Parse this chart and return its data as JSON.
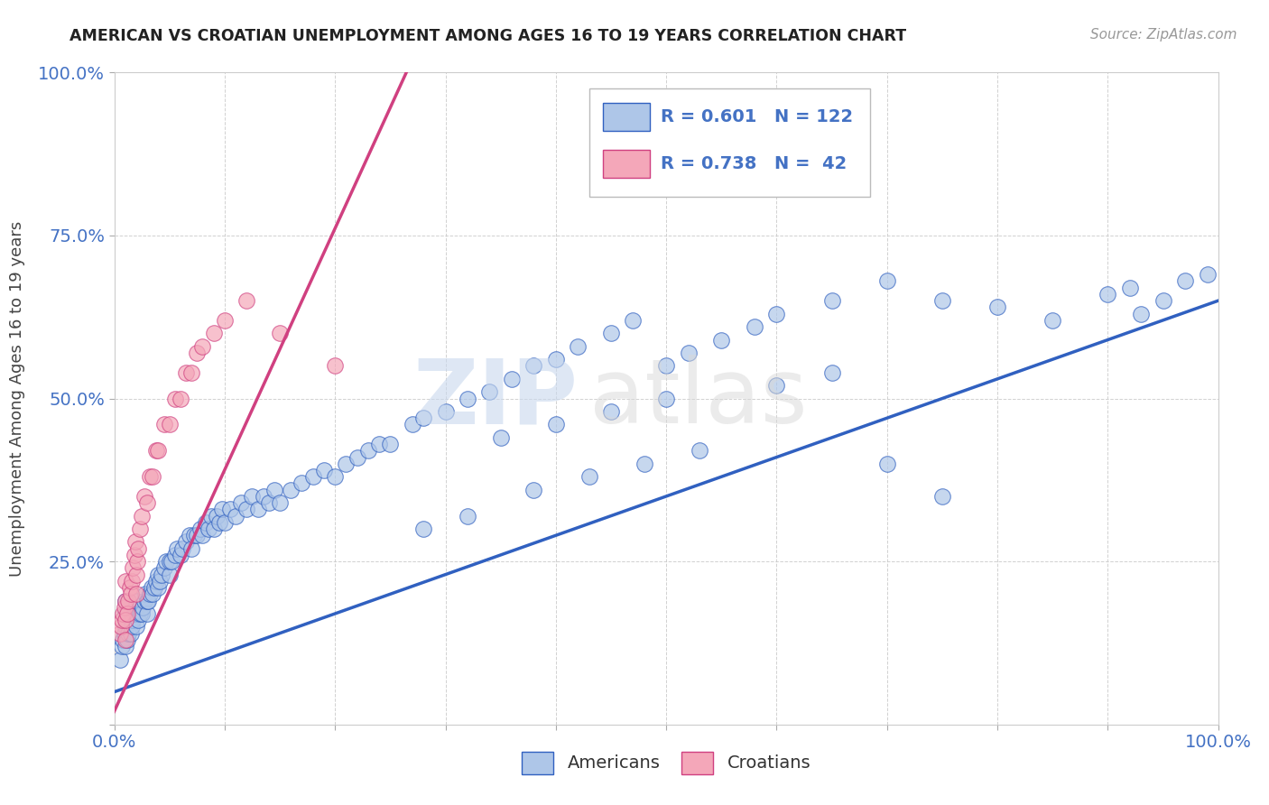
{
  "title": "AMERICAN VS CROATIAN UNEMPLOYMENT AMONG AGES 16 TO 19 YEARS CORRELATION CHART",
  "source": "Source: ZipAtlas.com",
  "ylabel": "Unemployment Among Ages 16 to 19 years",
  "xlim": [
    0,
    1.0
  ],
  "ylim": [
    0,
    1.0
  ],
  "xticks": [
    0.0,
    0.1,
    0.2,
    0.3,
    0.4,
    0.5,
    0.6,
    0.7,
    0.8,
    0.9,
    1.0
  ],
  "yticks": [
    0.0,
    0.25,
    0.5,
    0.75,
    1.0
  ],
  "xticklabels": [
    "0.0%",
    "",
    "",
    "",
    "",
    "",
    "",
    "",
    "",
    "",
    "100.0%"
  ],
  "yticklabels": [
    "",
    "25.0%",
    "50.0%",
    "75.0%",
    "100.0%"
  ],
  "legend_r1": "R = 0.601",
  "legend_n1": "N = 122",
  "legend_r2": "R = 0.738",
  "legend_n2": "N =  42",
  "legend_label1": "Americans",
  "legend_label2": "Croatians",
  "color_american": "#aec6e8",
  "color_croatian": "#f4a7b9",
  "color_line_american": "#3060c0",
  "color_line_croatian": "#d04080",
  "watermark_zip": "ZIP",
  "watermark_atlas": "atlas",
  "am_line_x0": 0.0,
  "am_line_y0": 0.05,
  "am_line_x1": 1.0,
  "am_line_y1": 0.65,
  "cr_line_x0": 0.0,
  "cr_line_y0": 0.02,
  "cr_line_x1": 0.27,
  "cr_line_y1": 1.02,
  "american_x": [
    0.005,
    0.007,
    0.008,
    0.009,
    0.01,
    0.01,
    0.01,
    0.01,
    0.012,
    0.013,
    0.015,
    0.015,
    0.016,
    0.017,
    0.018,
    0.019,
    0.02,
    0.02,
    0.02,
    0.022,
    0.023,
    0.025,
    0.026,
    0.027,
    0.028,
    0.03,
    0.03,
    0.031,
    0.032,
    0.034,
    0.035,
    0.036,
    0.038,
    0.04,
    0.04,
    0.041,
    0.043,
    0.045,
    0.047,
    0.05,
    0.05,
    0.052,
    0.055,
    0.057,
    0.06,
    0.062,
    0.065,
    0.068,
    0.07,
    0.072,
    0.075,
    0.078,
    0.08,
    0.083,
    0.085,
    0.088,
    0.09,
    0.093,
    0.095,
    0.098,
    0.1,
    0.105,
    0.11,
    0.115,
    0.12,
    0.125,
    0.13,
    0.135,
    0.14,
    0.145,
    0.15,
    0.16,
    0.17,
    0.18,
    0.19,
    0.2,
    0.21,
    0.22,
    0.23,
    0.24,
    0.25,
    0.27,
    0.28,
    0.3,
    0.32,
    0.34,
    0.36,
    0.38,
    0.4,
    0.42,
    0.45,
    0.47,
    0.5,
    0.52,
    0.55,
    0.58,
    0.6,
    0.65,
    0.7,
    0.75,
    0.8,
    0.85,
    0.9,
    0.92,
    0.93,
    0.95,
    0.97,
    0.99,
    0.35,
    0.4,
    0.45,
    0.5,
    0.38,
    0.43,
    0.48,
    0.53,
    0.28,
    0.32,
    0.6,
    0.65,
    0.7,
    0.75
  ],
  "american_y": [
    0.1,
    0.12,
    0.13,
    0.14,
    0.12,
    0.15,
    0.17,
    0.19,
    0.13,
    0.14,
    0.14,
    0.16,
    0.15,
    0.16,
    0.17,
    0.18,
    0.15,
    0.17,
    0.19,
    0.16,
    0.17,
    0.17,
    0.18,
    0.19,
    0.2,
    0.17,
    0.19,
    0.19,
    0.2,
    0.21,
    0.2,
    0.21,
    0.22,
    0.21,
    0.23,
    0.22,
    0.23,
    0.24,
    0.25,
    0.23,
    0.25,
    0.25,
    0.26,
    0.27,
    0.26,
    0.27,
    0.28,
    0.29,
    0.27,
    0.29,
    0.29,
    0.3,
    0.29,
    0.31,
    0.3,
    0.32,
    0.3,
    0.32,
    0.31,
    0.33,
    0.31,
    0.33,
    0.32,
    0.34,
    0.33,
    0.35,
    0.33,
    0.35,
    0.34,
    0.36,
    0.34,
    0.36,
    0.37,
    0.38,
    0.39,
    0.38,
    0.4,
    0.41,
    0.42,
    0.43,
    0.43,
    0.46,
    0.47,
    0.48,
    0.5,
    0.51,
    0.53,
    0.55,
    0.56,
    0.58,
    0.6,
    0.62,
    0.55,
    0.57,
    0.59,
    0.61,
    0.63,
    0.65,
    0.68,
    0.65,
    0.64,
    0.62,
    0.66,
    0.67,
    0.63,
    0.65,
    0.68,
    0.69,
    0.44,
    0.46,
    0.48,
    0.5,
    0.36,
    0.38,
    0.4,
    0.42,
    0.3,
    0.32,
    0.52,
    0.54,
    0.4,
    0.35
  ],
  "croatian_x": [
    0.005,
    0.006,
    0.007,
    0.008,
    0.009,
    0.01,
    0.01,
    0.01,
    0.01,
    0.012,
    0.013,
    0.014,
    0.015,
    0.016,
    0.017,
    0.018,
    0.019,
    0.02,
    0.02,
    0.021,
    0.022,
    0.023,
    0.025,
    0.027,
    0.03,
    0.032,
    0.035,
    0.038,
    0.04,
    0.045,
    0.05,
    0.055,
    0.06,
    0.065,
    0.07,
    0.075,
    0.08,
    0.09,
    0.1,
    0.12,
    0.15,
    0.2
  ],
  "croatian_y": [
    0.14,
    0.15,
    0.16,
    0.17,
    0.18,
    0.13,
    0.16,
    0.19,
    0.22,
    0.17,
    0.19,
    0.21,
    0.2,
    0.22,
    0.24,
    0.26,
    0.28,
    0.2,
    0.23,
    0.25,
    0.27,
    0.3,
    0.32,
    0.35,
    0.34,
    0.38,
    0.38,
    0.42,
    0.42,
    0.46,
    0.46,
    0.5,
    0.5,
    0.54,
    0.54,
    0.57,
    0.58,
    0.6,
    0.62,
    0.65,
    0.6,
    0.55
  ]
}
